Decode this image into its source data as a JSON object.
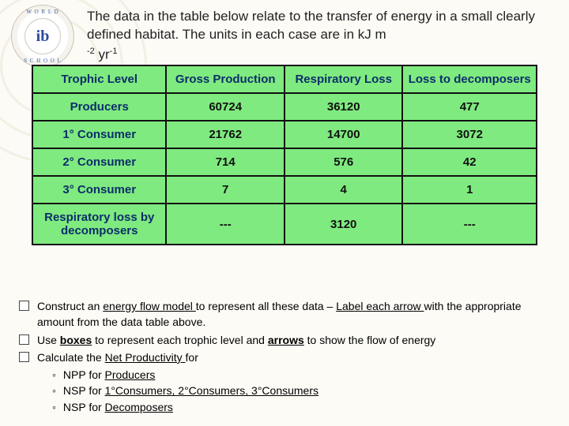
{
  "logo": {
    "ring_top": "W O R L D",
    "ring_bottom": "S C H O O L",
    "center": "ib"
  },
  "intro": {
    "line": "The data in the table below relate to the transfer of energy in a small clearly defined habitat. The units in each case are in kJ m",
    "exp1": "-2",
    "mid": " yr",
    "exp2": "-1"
  },
  "table": {
    "headers": [
      "Trophic Level",
      "Gross Production",
      "Respiratory Loss",
      "Loss to decomposers"
    ],
    "rows": [
      {
        "label": "Producers",
        "vals": [
          "60724",
          "36120",
          "477"
        ]
      },
      {
        "label": "1° Consumer",
        "vals": [
          "21762",
          "14700",
          "3072"
        ]
      },
      {
        "label": "2° Consumer",
        "vals": [
          "714",
          "576",
          "42"
        ]
      },
      {
        "label": "3° Consumer",
        "vals": [
          "7",
          "4",
          "1"
        ]
      },
      {
        "label": "Respiratory loss by decomposers",
        "vals": [
          "---",
          "3120",
          "---"
        ]
      }
    ],
    "col_widths": [
      "170px",
      "150px",
      "150px",
      "170px"
    ],
    "bg_color": "#7fea7f",
    "border_color": "#111111",
    "header_color": "#0c2e6b"
  },
  "tasks": {
    "items": [
      {
        "pre": "Construct  an ",
        "u1": "energy flow model ",
        "mid1": "to represent all these data – ",
        "u2": "Label each arrow ",
        "post": "with the appropriate amount from the data table above."
      },
      {
        "pre": "Use ",
        "b1": "boxes",
        "mid1": " to represent each trophic level and ",
        "b2": "arrows",
        "post": " to show the flow of energy"
      },
      {
        "pre": "Calculate the ",
        "u1": "Net Productivity ",
        "post": "for",
        "subs": [
          {
            "lead": "NPP for ",
            "u": "Producers"
          },
          {
            "lead": "NSP for ",
            "u": "1°Consumers, 2°Consumers, 3°Consumers"
          },
          {
            "lead": "NSP for ",
            "u": "Decomposers"
          }
        ]
      }
    ]
  }
}
